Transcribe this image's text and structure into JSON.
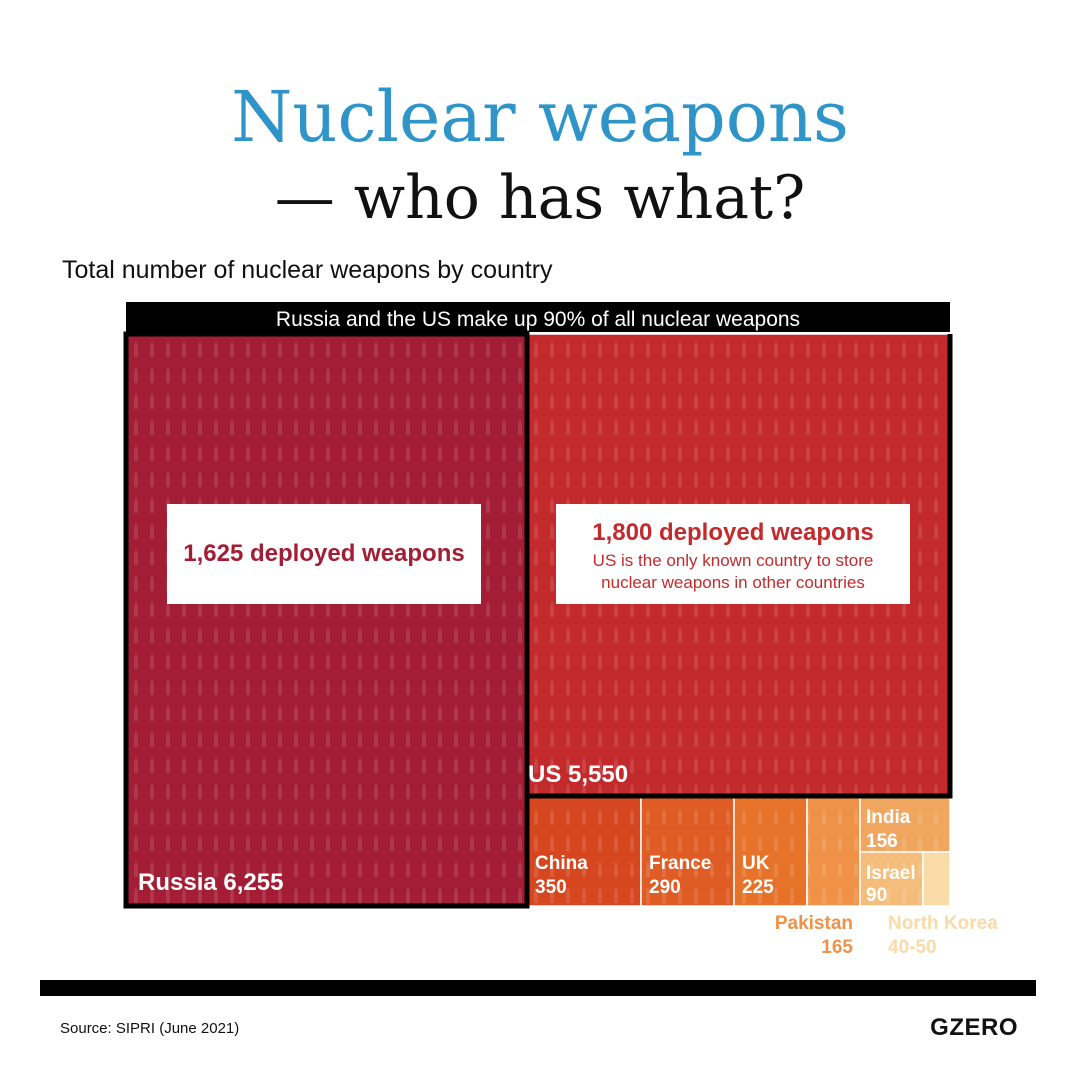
{
  "title": {
    "line1": "Nuclear weapons",
    "line2": "— who has what?"
  },
  "subtitle": "Total number of nuclear weapons by country",
  "banner": "Russia and the US make up 90% of all nuclear weapons",
  "source": "Source: SIPRI (June 2021)",
  "logo": "GZERO",
  "colors": {
    "russia": "#a31d34",
    "us": "#c32a2c",
    "china": "#d6461f",
    "france": "#df5d24",
    "uk": "#e7722a",
    "pakistan": "#ef9247",
    "india": "#f0a65e",
    "israel": "#f4bd7c",
    "north_korea": "#f9dba8",
    "title_blue": "#2f95c9"
  },
  "chart_data": {
    "type": "treemap",
    "items": [
      {
        "name": "Russia",
        "value": 6255,
        "label": "Russia 6,255",
        "callout": {
          "line1": "1,625 deployed weapons"
        }
      },
      {
        "name": "US",
        "value": 5550,
        "label": "US 5,550",
        "callout": {
          "line1": "1,800 deployed weapons",
          "line2": "US is the only known country to store",
          "line3": "nuclear weapons in other countries"
        }
      },
      {
        "name": "China",
        "value": 350,
        "label_name": "China",
        "label_value": "350"
      },
      {
        "name": "France",
        "value": 290,
        "label_name": "France",
        "label_value": "290"
      },
      {
        "name": "UK",
        "value": 225,
        "label_name": "UK",
        "label_value": "225"
      },
      {
        "name": "Pakistan",
        "value": 165,
        "label_name": "Pakistan",
        "label_value": "165"
      },
      {
        "name": "India",
        "value": 156,
        "label_name": "India",
        "label_value": "156"
      },
      {
        "name": "Israel",
        "value": 90,
        "label_name": "Israel",
        "label_value": "90"
      },
      {
        "name": "North Korea",
        "value_range": [
          40,
          50
        ],
        "label_name": "North Korea",
        "label_value": "40-50"
      }
    ]
  }
}
